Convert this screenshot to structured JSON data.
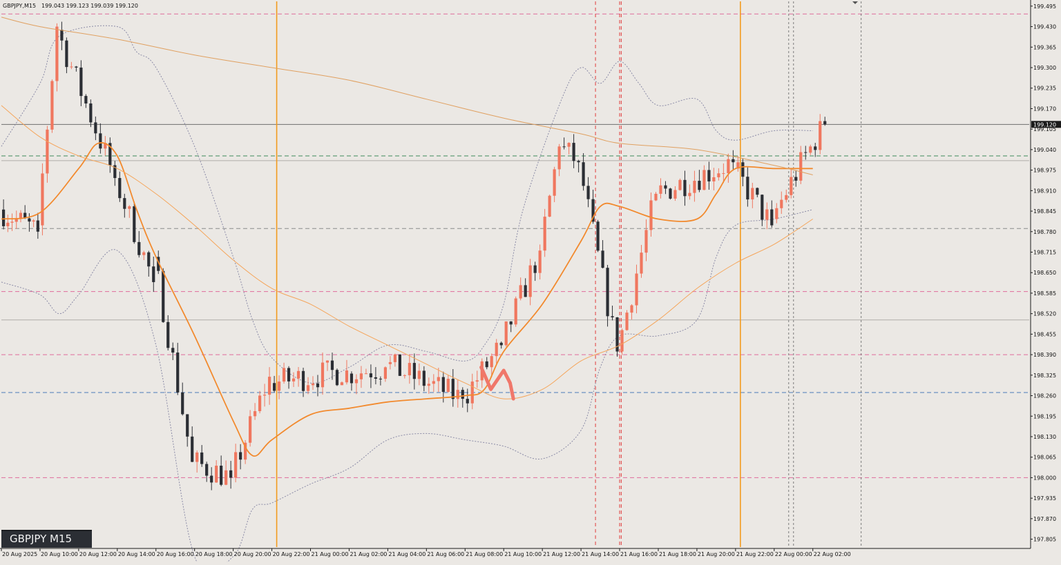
{
  "header": {
    "symbol": "GBPJPY,M15",
    "ohlc": "199.043 199.123 199.039 199.120"
  },
  "watermark": {
    "label": "GBPJPY M15"
  },
  "colors": {
    "background": "#ebe8e4",
    "bull_candle": "#f0775f",
    "bear_candle": "#2b2e34",
    "ma_fast": "#f28a2e",
    "ma_slow": "#f5a55a",
    "ma_long": "#e0a060",
    "bollinger": "#8a8aa6",
    "pink_level": "#e06a9a",
    "green_level": "#3e8a5a",
    "blue_level": "#4a7ab8",
    "gray_level": "#8a8a8a",
    "session_line": "#f29a1e",
    "red_vline": "#e03a3a",
    "current_price_tag": "#1a1a1a"
  },
  "chart_data": {
    "type": "candlestick",
    "symbol": "GBPJPY",
    "timeframe": "M15",
    "ylim": [
      197.78,
      199.51
    ],
    "price_ticks": [
      "199.495",
      "199.430",
      "199.365",
      "199.300",
      "199.235",
      "199.170",
      "199.105",
      "199.040",
      "198.975",
      "198.910",
      "198.845",
      "198.780",
      "198.715",
      "198.650",
      "198.585",
      "198.520",
      "198.455",
      "198.390",
      "198.325",
      "198.260",
      "198.195",
      "198.130",
      "198.065",
      "198.000",
      "197.935",
      "197.870",
      "197.805"
    ],
    "time_ticks": [
      "20 Aug 2025",
      "20 Aug 10:00",
      "20 Aug 12:00",
      "20 Aug 14:00",
      "20 Aug 16:00",
      "20 Aug 18:00",
      "20 Aug 20:00",
      "20 Aug 22:00",
      "21 Aug 00:00",
      "21 Aug 02:00",
      "21 Aug 04:00",
      "21 Aug 06:00",
      "21 Aug 08:00",
      "21 Aug 10:00",
      "21 Aug 12:00",
      "21 Aug 14:00",
      "21 Aug 16:00",
      "21 Aug 18:00",
      "21 Aug 20:00",
      "21 Aug 22:00",
      "22 Aug 00:00",
      "22 Aug 02:00"
    ],
    "current_price": "199.120",
    "horizontal_levels": [
      {
        "price": 199.47,
        "style": "pink"
      },
      {
        "price": 199.12,
        "style": "gray-solid"
      },
      {
        "price": 199.02,
        "style": "green"
      },
      {
        "price": 199.005,
        "style": "gray-light"
      },
      {
        "price": 198.79,
        "style": "gray"
      },
      {
        "price": 198.59,
        "style": "pink"
      },
      {
        "price": 198.5,
        "style": "gray-light"
      },
      {
        "price": 198.39,
        "style": "pink"
      },
      {
        "price": 198.27,
        "style": "blue"
      },
      {
        "price": 198.0,
        "style": "pink"
      }
    ],
    "vertical_lines": [
      {
        "time": "20 Aug 22:15",
        "style": "orange"
      },
      {
        "time": "21 Aug 14:45",
        "style": "red"
      },
      {
        "time": "21 Aug 16:00",
        "style": "red"
      },
      {
        "time": "21 Aug 16:05",
        "style": "red"
      },
      {
        "time": "21 Aug 22:15",
        "style": "orange"
      },
      {
        "time": "22 Aug 00:45",
        "style": "gray"
      },
      {
        "time": "22 Aug 01:00",
        "style": "gray"
      },
      {
        "time": "22 Aug 04:30",
        "style": "gray"
      }
    ],
    "candle_groups": [
      {
        "start": "20 Aug 2025",
        "end": "20 Aug 10:00",
        "open": 198.85,
        "close": 198.78,
        "low": 198.68,
        "high": 198.92,
        "count": 9
      },
      {
        "start": "20 Aug 10:00",
        "end": "20 Aug 11:00",
        "open": 198.8,
        "close": 199.43,
        "low": 198.76,
        "high": 199.45,
        "count": 4
      },
      {
        "start": "20 Aug 11:00",
        "end": "20 Aug 14:00",
        "open": 199.42,
        "close": 198.95,
        "low": 198.9,
        "high": 199.45,
        "count": 12
      },
      {
        "start": "20 Aug 14:00",
        "end": "20 Aug 16:00",
        "open": 198.95,
        "close": 198.62,
        "low": 198.55,
        "high": 199.0,
        "count": 8
      },
      {
        "start": "20 Aug 16:00",
        "end": "20 Aug 18:00",
        "open": 198.7,
        "close": 198.05,
        "low": 197.85,
        "high": 198.72,
        "count": 8
      },
      {
        "start": "20 Aug 18:00",
        "end": "20 Aug 20:00",
        "open": 198.05,
        "close": 198.0,
        "low": 197.9,
        "high": 198.2,
        "count": 8
      },
      {
        "start": "20 Aug 20:00",
        "end": "20 Aug 22:00",
        "open": 198.0,
        "close": 198.32,
        "low": 197.95,
        "high": 198.38,
        "count": 8
      },
      {
        "start": "20 Aug 22:00",
        "end": "21 Aug 02:00",
        "open": 198.3,
        "close": 198.34,
        "low": 198.05,
        "high": 198.42,
        "count": 16
      },
      {
        "start": "21 Aug 02:00",
        "end": "21 Aug 04:00",
        "open": 198.33,
        "close": 198.35,
        "low": 198.24,
        "high": 198.43,
        "count": 8
      },
      {
        "start": "21 Aug 04:00",
        "end": "21 Aug 08:00",
        "open": 198.36,
        "close": 198.25,
        "low": 198.12,
        "high": 198.42,
        "count": 16
      },
      {
        "start": "21 Aug 08:00",
        "end": "21 Aug 10:00",
        "open": 198.25,
        "close": 198.42,
        "low": 198.2,
        "high": 198.48,
        "count": 8
      },
      {
        "start": "21 Aug 10:00",
        "end": "21 Aug 12:00",
        "open": 198.42,
        "close": 198.72,
        "low": 198.3,
        "high": 198.8,
        "count": 8
      },
      {
        "start": "21 Aug 12:00",
        "end": "21 Aug 13:00",
        "open": 198.72,
        "close": 199.05,
        "low": 198.7,
        "high": 199.12,
        "count": 4
      },
      {
        "start": "21 Aug 13:00",
        "end": "21 Aug 14:00",
        "open": 199.05,
        "close": 199.0,
        "low": 198.95,
        "high": 199.2,
        "count": 4
      },
      {
        "start": "21 Aug 14:00",
        "end": "21 Aug 16:00",
        "open": 199.0,
        "close": 198.4,
        "low": 198.38,
        "high": 199.05,
        "count": 8
      },
      {
        "start": "21 Aug 16:00",
        "end": "21 Aug 18:00",
        "open": 198.4,
        "close": 198.9,
        "low": 198.38,
        "high": 199.0,
        "count": 8
      },
      {
        "start": "21 Aug 18:00",
        "end": "21 Aug 22:00",
        "open": 198.9,
        "close": 199.0,
        "low": 198.82,
        "high": 199.08,
        "count": 16
      },
      {
        "start": "21 Aug 22:00",
        "end": "22 Aug 00:00",
        "open": 198.98,
        "close": 198.8,
        "low": 198.75,
        "high": 199.02,
        "count": 8
      },
      {
        "start": "22 Aug 00:00",
        "end": "22 Aug 02:00",
        "open": 198.82,
        "close": 199.05,
        "low": 198.8,
        "high": 199.12,
        "count": 8
      },
      {
        "start": "22 Aug 02:00",
        "end": "22 Aug 02:45",
        "open": 199.05,
        "close": 199.12,
        "low": 198.95,
        "high": 199.2,
        "count": 3
      }
    ],
    "indicators": [
      {
        "name": "fast MA",
        "color": "ma_fast",
        "points": [
          [
            "20 Aug 2025",
            198.82
          ],
          [
            "20 Aug 10:00",
            198.84
          ],
          [
            "20 Aug 12:00",
            198.98
          ],
          [
            "20 Aug 13:00",
            199.06
          ],
          [
            "20 Aug 14:00",
            199.02
          ],
          [
            "20 Aug 15:00",
            198.85
          ],
          [
            "20 Aug 16:00",
            198.7
          ],
          [
            "20 Aug 18:00",
            198.45
          ],
          [
            "20 Aug 20:00",
            198.18
          ],
          [
            "20 Aug 21:00",
            198.07
          ],
          [
            "20 Aug 22:00",
            198.12
          ],
          [
            "21 Aug 00:00",
            198.2
          ],
          [
            "21 Aug 02:00",
            198.22
          ],
          [
            "21 Aug 04:00",
            198.24
          ],
          [
            "21 Aug 06:00",
            198.25
          ],
          [
            "21 Aug 08:00",
            198.26
          ],
          [
            "21 Aug 09:00",
            198.28
          ],
          [
            "21 Aug 10:00",
            198.4
          ],
          [
            "21 Aug 12:00",
            198.55
          ],
          [
            "21 Aug 14:00",
            198.75
          ],
          [
            "21 Aug 15:00",
            198.86
          ],
          [
            "21 Aug 16:00",
            198.86
          ],
          [
            "21 Aug 18:00",
            198.82
          ],
          [
            "21 Aug 20:00",
            198.82
          ],
          [
            "21 Aug 21:00",
            198.9
          ],
          [
            "21 Aug 22:00",
            198.98
          ],
          [
            "22 Aug 00:00",
            198.98
          ],
          [
            "22 Aug 02:00",
            198.98
          ]
        ]
      },
      {
        "name": "slow MA",
        "color": "ma_slow",
        "points": [
          [
            "20 Aug 2025",
            199.18
          ],
          [
            "20 Aug 10:00",
            199.08
          ],
          [
            "20 Aug 12:00",
            199.02
          ],
          [
            "20 Aug 14:00",
            198.98
          ],
          [
            "20 Aug 16:00",
            198.9
          ],
          [
            "20 Aug 18:00",
            198.8
          ],
          [
            "20 Aug 20:00",
            198.69
          ],
          [
            "20 Aug 22:00",
            198.6
          ],
          [
            "21 Aug 00:00",
            198.55
          ],
          [
            "21 Aug 02:00",
            198.48
          ],
          [
            "21 Aug 04:00",
            198.42
          ],
          [
            "21 Aug 06:00",
            198.36
          ],
          [
            "21 Aug 08:00",
            198.3
          ],
          [
            "21 Aug 10:00",
            198.25
          ],
          [
            "21 Aug 12:00",
            198.28
          ],
          [
            "21 Aug 14:00",
            198.37
          ],
          [
            "21 Aug 16:00",
            198.42
          ],
          [
            "21 Aug 18:00",
            198.5
          ],
          [
            "21 Aug 20:00",
            198.6
          ],
          [
            "21 Aug 22:00",
            198.68
          ],
          [
            "22 Aug 00:00",
            198.74
          ],
          [
            "22 Aug 02:00",
            198.82
          ]
        ]
      },
      {
        "name": "long MA",
        "color": "ma_long",
        "points": [
          [
            "20 Aug 2025",
            199.46
          ],
          [
            "20 Aug 10:00",
            199.43
          ],
          [
            "20 Aug 14:00",
            199.39
          ],
          [
            "20 Aug 18:00",
            199.34
          ],
          [
            "20 Aug 22:00",
            199.3
          ],
          [
            "21 Aug 02:00",
            199.26
          ],
          [
            "21 Aug 06:00",
            199.2
          ],
          [
            "21 Aug 10:00",
            199.14
          ],
          [
            "21 Aug 14:00",
            199.09
          ],
          [
            "21 Aug 16:00",
            199.06
          ],
          [
            "21 Aug 20:00",
            199.04
          ],
          [
            "22 Aug 00:00",
            198.99
          ],
          [
            "22 Aug 02:00",
            198.96
          ]
        ]
      },
      {
        "name": "upper band",
        "color": "bollinger",
        "dashed": true,
        "points": [
          [
            "20 Aug 2025",
            199.05
          ],
          [
            "20 Aug 10:00",
            199.25
          ],
          [
            "20 Aug 11:00",
            199.4
          ],
          [
            "20 Aug 14:00",
            199.43
          ],
          [
            "20 Aug 15:00",
            199.35
          ],
          [
            "20 Aug 16:00",
            199.3
          ],
          [
            "20 Aug 18:00",
            199.05
          ],
          [
            "20 Aug 20:00",
            198.7
          ],
          [
            "20 Aug 21:00",
            198.5
          ],
          [
            "20 Aug 22:00",
            198.38
          ],
          [
            "21 Aug 00:00",
            198.3
          ],
          [
            "21 Aug 02:00",
            198.35
          ],
          [
            "21 Aug 04:00",
            198.42
          ],
          [
            "21 Aug 06:00",
            198.4
          ],
          [
            "21 Aug 08:00",
            198.37
          ],
          [
            "21 Aug 09:00",
            198.42
          ],
          [
            "21 Aug 10:00",
            198.55
          ],
          [
            "21 Aug 11:00",
            198.85
          ],
          [
            "21 Aug 13:00",
            199.2
          ],
          [
            "21 Aug 14:00",
            199.3
          ],
          [
            "21 Aug 15:00",
            199.25
          ],
          [
            "21 Aug 16:00",
            199.32
          ],
          [
            "21 Aug 17:00",
            199.25
          ],
          [
            "21 Aug 18:00",
            199.18
          ],
          [
            "21 Aug 20:00",
            199.2
          ],
          [
            "21 Aug 21:00",
            199.1
          ],
          [
            "21 Aug 22:00",
            199.07
          ],
          [
            "22 Aug 00:00",
            199.1
          ],
          [
            "22 Aug 02:00",
            199.1
          ]
        ]
      },
      {
        "name": "lower band",
        "color": "bollinger",
        "dashed": true,
        "points": [
          [
            "20 Aug 2025",
            198.62
          ],
          [
            "20 Aug 10:00",
            198.58
          ],
          [
            "20 Aug 11:00",
            198.52
          ],
          [
            "20 Aug 12:00",
            198.58
          ],
          [
            "20 Aug 14:00",
            198.72
          ],
          [
            "20 Aug 16:00",
            198.42
          ],
          [
            "20 Aug 18:00",
            197.75
          ],
          [
            "20 Aug 20:00",
            197.75
          ],
          [
            "20 Aug 21:00",
            197.9
          ],
          [
            "20 Aug 22:00",
            197.92
          ],
          [
            "21 Aug 00:00",
            197.98
          ],
          [
            "21 Aug 02:00",
            198.03
          ],
          [
            "21 Aug 04:00",
            198.12
          ],
          [
            "21 Aug 06:00",
            198.14
          ],
          [
            "21 Aug 08:00",
            198.12
          ],
          [
            "21 Aug 10:00",
            198.1
          ],
          [
            "21 Aug 12:00",
            198.06
          ],
          [
            "21 Aug 14:00",
            198.15
          ],
          [
            "21 Aug 15:00",
            198.35
          ],
          [
            "21 Aug 16:00",
            198.45
          ],
          [
            "21 Aug 18:00",
            198.45
          ],
          [
            "21 Aug 20:00",
            198.5
          ],
          [
            "21 Aug 21:00",
            198.7
          ],
          [
            "21 Aug 22:00",
            198.8
          ],
          [
            "22 Aug 00:00",
            198.82
          ],
          [
            "22 Aug 02:00",
            198.85
          ]
        ]
      }
    ],
    "annotation_path": [
      [
        "21 Aug 08:50",
        198.35
      ],
      [
        "21 Aug 09:20",
        198.28
      ],
      [
        "21 Aug 10:00",
        198.34
      ],
      [
        "21 Aug 10:20",
        198.3
      ],
      [
        "21 Aug 10:30",
        198.25
      ]
    ]
  }
}
